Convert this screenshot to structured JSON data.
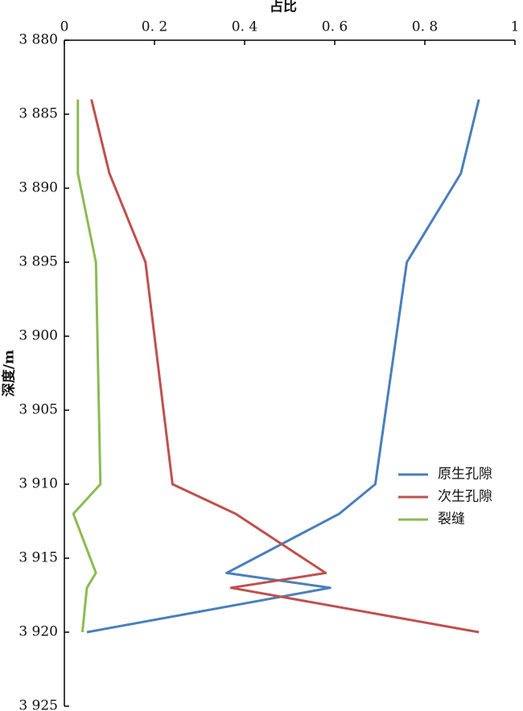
{
  "chart_data": {
    "type": "line",
    "xlabel": "深度/m",
    "ylabel": "占比",
    "x": [
      3884,
      3889,
      3895,
      3910,
      3912,
      3916,
      3917,
      3920
    ],
    "xlim": [
      3880,
      3925
    ],
    "xticks": [
      {
        "value": 3880,
        "label": "3 880"
      },
      {
        "value": 3885,
        "label": "3 885"
      },
      {
        "value": 3890,
        "label": "3 890"
      },
      {
        "value": 3895,
        "label": "3 895"
      },
      {
        "value": 3900,
        "label": "3 900"
      },
      {
        "value": 3905,
        "label": "3 905"
      },
      {
        "value": 3910,
        "label": "3 910"
      },
      {
        "value": 3915,
        "label": "3 915"
      },
      {
        "value": 3920,
        "label": "3 920"
      },
      {
        "value": 3925,
        "label": "3 925"
      }
    ],
    "ylim": [
      0,
      1
    ],
    "yticks": [
      0,
      {
        "value": 0.2,
        "label": "0. 2"
      },
      {
        "value": 0.4,
        "label": "0. 4"
      },
      {
        "value": 0.6,
        "label": "0. 6"
      },
      {
        "value": 0.8,
        "label": "0. 8"
      },
      1
    ],
    "series": [
      {
        "name": "原生孔隙",
        "color": "#4a7fbd",
        "values": [
          0.92,
          0.88,
          0.76,
          0.69,
          0.61,
          0.36,
          0.59,
          0.05
        ]
      },
      {
        "name": "次生孔隙",
        "color": "#c0504d",
        "values": [
          0.06,
          0.1,
          0.18,
          0.24,
          0.38,
          0.58,
          0.37,
          0.92
        ]
      },
      {
        "name": "裂缝",
        "color": "#8cbb52",
        "values": [
          0.03,
          0.03,
          0.07,
          0.08,
          0.02,
          0.07,
          0.05,
          0.04
        ]
      }
    ]
  }
}
